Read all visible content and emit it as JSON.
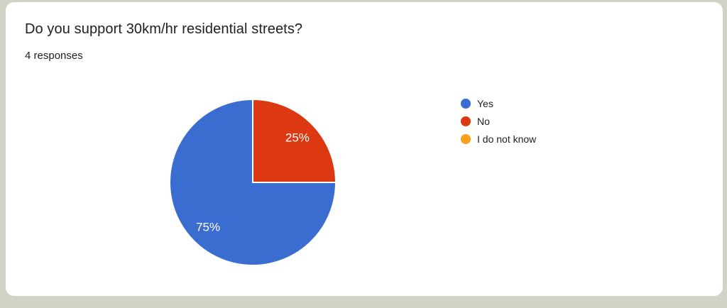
{
  "card": {
    "title": "Do you support 30km/hr residential streets?",
    "responses_label": "4 responses"
  },
  "colors": {
    "page_background": "#cfd4c7",
    "card_background": "#ffffff",
    "text": "#202124",
    "slice_label_text": "#ffffff"
  },
  "chart_data": {
    "type": "pie",
    "title": "Do you support 30km/hr residential streets?",
    "subtitle": "4 responses",
    "total_responses": 4,
    "categories": [
      "Yes",
      "No",
      "I do not know"
    ],
    "values": [
      3,
      1,
      0
    ],
    "percentages": [
      75,
      25,
      0
    ],
    "slice_colors": [
      "#3b6dd0",
      "#dc3912",
      "#f9a01f"
    ],
    "legend_position": "right",
    "slice_label_format": "percent",
    "start_angle": "top",
    "direction": "counterclockwise",
    "slice_border_color": "#ffffff"
  }
}
